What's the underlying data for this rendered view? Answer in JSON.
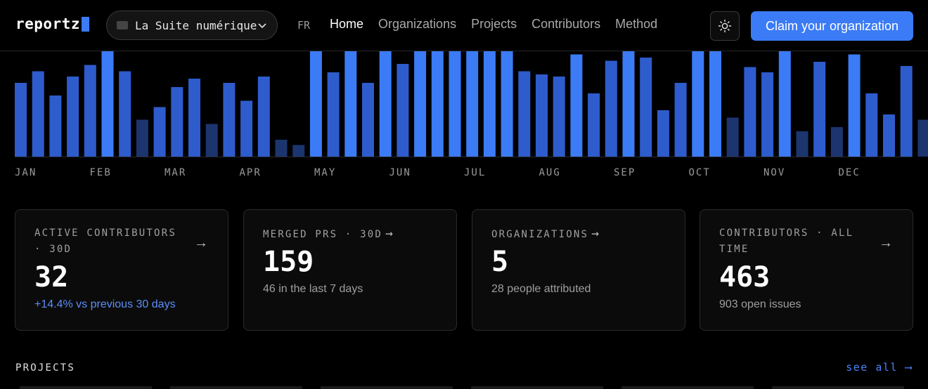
{
  "header": {
    "logo": "reportz",
    "suite_selector": "La Suite numérique",
    "lang": "FR",
    "nav": [
      "Home",
      "Organizations",
      "Projects",
      "Contributors",
      "Method"
    ],
    "claim_button": "Claim your organization"
  },
  "chart_data": {
    "type": "bar",
    "months": [
      "JAN",
      "FEB",
      "MAR",
      "APR",
      "MAY",
      "JUN",
      "JUL",
      "AUG",
      "SEP",
      "OCT",
      "NOV",
      "DEC"
    ],
    "values": [
      0.7,
      0.81,
      0.58,
      0.76,
      0.87,
      1.0,
      0.81,
      0.35,
      0.47,
      0.66,
      0.74,
      0.31,
      0.7,
      0.53,
      0.76,
      0.16,
      0.11,
      1.0,
      0.8,
      1.0,
      0.7,
      1.0,
      0.88,
      1.0,
      1.0,
      1.0,
      1.0,
      1.0,
      1.0,
      0.81,
      0.78,
      0.76,
      0.97,
      0.6,
      0.91,
      1.0,
      0.94,
      0.44,
      0.7,
      1.0,
      1.0,
      0.37,
      0.85,
      0.8,
      1.0,
      0.24,
      0.9,
      0.28,
      0.97,
      0.6,
      0.4,
      0.86,
      0.35
    ],
    "colors": {
      "low": "#1c356f",
      "mid": "#2e5ccc",
      "high": "#3b7bf6"
    }
  },
  "stats": [
    {
      "label": "ACTIVE CONTRIBUTORS · 30D",
      "value": "32",
      "sub": "+14.4% vs previous 30 days",
      "arrow": "→"
    },
    {
      "label": "MERGED PRS · 30D",
      "value": "159",
      "sub": "46 in the last 7 days",
      "arrow": "→"
    },
    {
      "label": "ORGANIZATIONS",
      "value": "5",
      "sub": "28 people attributed",
      "arrow": "→"
    },
    {
      "label": "CONTRIBUTORS · ALL TIME",
      "value": "463",
      "sub": "903 open issues",
      "arrow": "→"
    }
  ],
  "projects": {
    "title": "PROJECTS",
    "see_all": "see all ⟶"
  }
}
